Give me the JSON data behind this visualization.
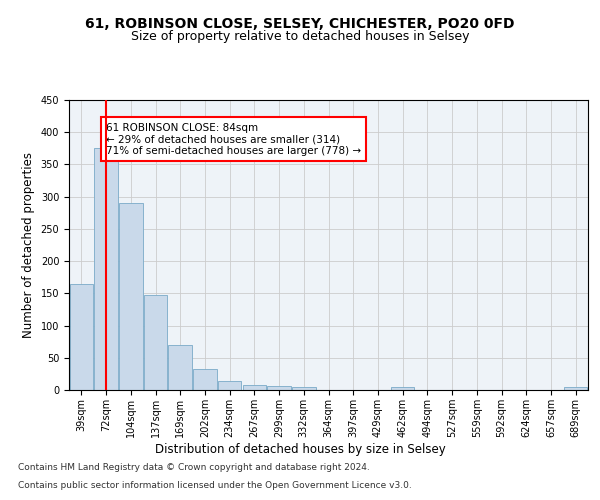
{
  "title1": "61, ROBINSON CLOSE, SELSEY, CHICHESTER, PO20 0FD",
  "title2": "Size of property relative to detached houses in Selsey",
  "xlabel": "Distribution of detached houses by size in Selsey",
  "ylabel": "Number of detached properties",
  "bar_labels": [
    "39sqm",
    "72sqm",
    "104sqm",
    "137sqm",
    "169sqm",
    "202sqm",
    "234sqm",
    "267sqm",
    "299sqm",
    "332sqm",
    "364sqm",
    "397sqm",
    "429sqm",
    "462sqm",
    "494sqm",
    "527sqm",
    "559sqm",
    "592sqm",
    "624sqm",
    "657sqm",
    "689sqm"
  ],
  "bar_values": [
    165,
    375,
    290,
    148,
    70,
    33,
    14,
    7,
    6,
    5,
    0,
    0,
    0,
    4,
    0,
    0,
    0,
    0,
    0,
    0,
    4
  ],
  "bar_color": "#c9d9ea",
  "bar_edge_color": "#7aaac8",
  "grid_color": "#cccccc",
  "background_color": "#eef3f8",
  "vline_x": 1,
  "vline_color": "red",
  "annotation_text": "61 ROBINSON CLOSE: 84sqm\n← 29% of detached houses are smaller (314)\n71% of semi-detached houses are larger (778) →",
  "annotation_box_color": "white",
  "annotation_box_edge": "red",
  "ylim": [
    0,
    450
  ],
  "yticks": [
    0,
    50,
    100,
    150,
    200,
    250,
    300,
    350,
    400,
    450
  ],
  "footer1": "Contains HM Land Registry data © Crown copyright and database right 2024.",
  "footer2": "Contains public sector information licensed under the Open Government Licence v3.0.",
  "title1_fontsize": 10,
  "title2_fontsize": 9,
  "xlabel_fontsize": 8.5,
  "ylabel_fontsize": 8.5,
  "tick_fontsize": 7,
  "annotation_fontsize": 7.5,
  "footer_fontsize": 6.5
}
